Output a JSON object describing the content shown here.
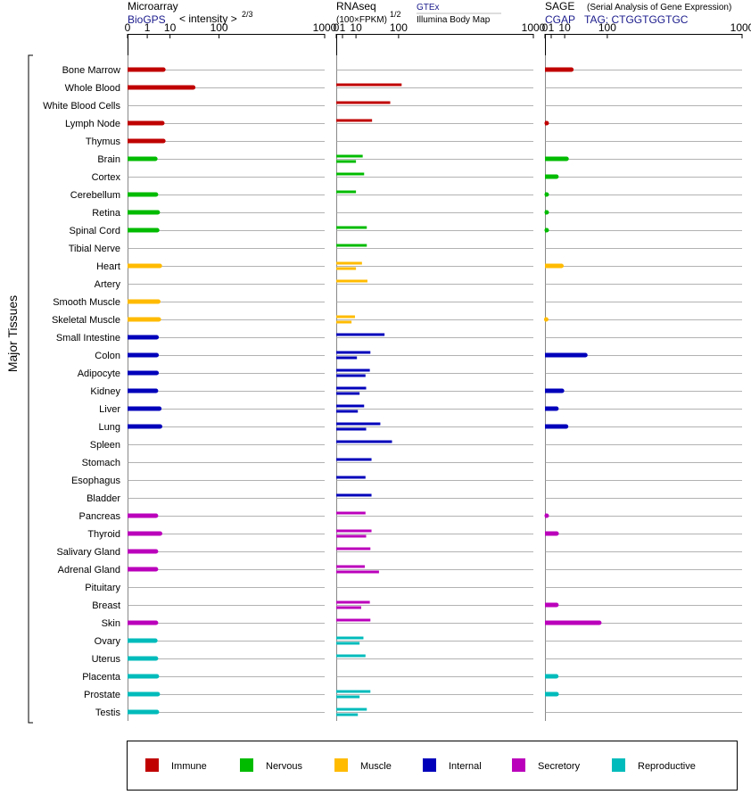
{
  "header": {
    "microarray_title": "Microarray",
    "microarray_source": "BioGPS",
    "microarray_scale_base": "< intensity >",
    "microarray_scale_exp": "2/3",
    "rnaseq_title": "RNAseq",
    "rnaseq_scale_base": "(100×FPKM)",
    "rnaseq_scale_exp": "1/2",
    "rnaseq_source_1": "GTEx",
    "rnaseq_source_2": "Illumina Body Map",
    "sage_title": "SAGE",
    "sage_subtitle": "(Serial Analysis of Gene Expression)",
    "sage_source": "CGAP",
    "sage_tag": "TAG: CTGGTGGTGC"
  },
  "y_group_label": "Major Tissues",
  "chart_data": {
    "type": "bar",
    "orientation": "horizontal",
    "x_scale": "power",
    "x_ticks": [
      "0",
      "1",
      "10",
      "100",
      "1000"
    ],
    "x_tick_values": [
      0,
      1,
      10,
      100,
      1000
    ],
    "xlim": [
      0,
      1000
    ],
    "grid": true,
    "tissues": [
      "Bone Marrow",
      "Whole Blood",
      "White Blood Cells",
      "Lymph Node",
      "Thymus",
      "Brain",
      "Cortex",
      "Cerebellum",
      "Retina",
      "Spinal Cord",
      "Tibial Nerve",
      "Heart",
      "Artery",
      "Smooth Muscle",
      "Skeletal Muscle",
      "Small Intestine",
      "Colon",
      "Adipocyte",
      "Kidney",
      "Liver",
      "Lung",
      "Spleen",
      "Stomach",
      "Esophagus",
      "Bladder",
      "Pancreas",
      "Thyroid",
      "Salivary Gland",
      "Adrenal Gland",
      "Pituitary",
      "Breast",
      "Skin",
      "Ovary",
      "Uterus",
      "Placenta",
      "Prostate",
      "Testis"
    ],
    "tissue_groups": [
      "Immune",
      "Immune",
      "Immune",
      "Immune",
      "Immune",
      "Nervous",
      "Nervous",
      "Nervous",
      "Nervous",
      "Nervous",
      "Nervous",
      "Muscle",
      "Muscle",
      "Muscle",
      "Muscle",
      "Internal",
      "Internal",
      "Internal",
      "Internal",
      "Internal",
      "Internal",
      "Internal",
      "Internal",
      "Internal",
      "Internal",
      "Secretory",
      "Secretory",
      "Secretory",
      "Secretory",
      "Secretory",
      "Secretory",
      "Secretory",
      "Reproductive",
      "Reproductive",
      "Reproductive",
      "Reproductive",
      "Reproductive"
    ],
    "panels": [
      {
        "name": "Microarray",
        "values": [
          6,
          37,
          null,
          5.5,
          6,
          2.8,
          null,
          3,
          3.6,
          3.4,
          null,
          4.4,
          null,
          3.8,
          4,
          3.2,
          3.2,
          3.2,
          3,
          4.2,
          4.5,
          null,
          null,
          null,
          null,
          3,
          4.5,
          3,
          3,
          null,
          null,
          3,
          2.8,
          3,
          3.3,
          3.6,
          3.3
        ]
      },
      {
        "name": "RNAseq GTEx",
        "values": [
          null,
          110,
          75,
          33,
          null,
          18,
          20,
          10,
          null,
          24,
          24,
          17,
          25,
          null,
          9,
          60,
          30,
          29,
          23,
          20,
          50,
          80,
          32,
          22,
          32,
          22,
          32,
          30,
          21,
          null,
          29,
          30,
          19,
          22,
          null,
          30,
          24
        ]
      },
      {
        "name": "RNAseq Illumina Body Map",
        "values": [
          null,
          null,
          null,
          null,
          null,
          10,
          null,
          null,
          null,
          null,
          null,
          10,
          null,
          null,
          6,
          null,
          11,
          22,
          14,
          12,
          23,
          null,
          null,
          null,
          null,
          null,
          23,
          null,
          47,
          null,
          16,
          null,
          14,
          null,
          null,
          14,
          12
        ]
      },
      {
        "name": "SAGE",
        "values": [
          18,
          null,
          null,
          0.08,
          null,
          12,
          3.4,
          0.08,
          0.08,
          0.08,
          null,
          7,
          null,
          null,
          0.04,
          null,
          42,
          null,
          7.5,
          3.4,
          11.5,
          null,
          null,
          null,
          null,
          0.08,
          3.5,
          null,
          null,
          null,
          3.4,
          76,
          null,
          null,
          3.3,
          3.5,
          null
        ]
      }
    ],
    "legend": [
      {
        "label": "Immune",
        "color": "#c00000"
      },
      {
        "label": "Nervous",
        "color": "#00bb00"
      },
      {
        "label": "Muscle",
        "color": "#ffbb00"
      },
      {
        "label": "Internal",
        "color": "#0000bb"
      },
      {
        "label": "Secretory",
        "color": "#bb00bb"
      },
      {
        "label": "Reproductive",
        "color": "#00bbbb"
      }
    ]
  }
}
